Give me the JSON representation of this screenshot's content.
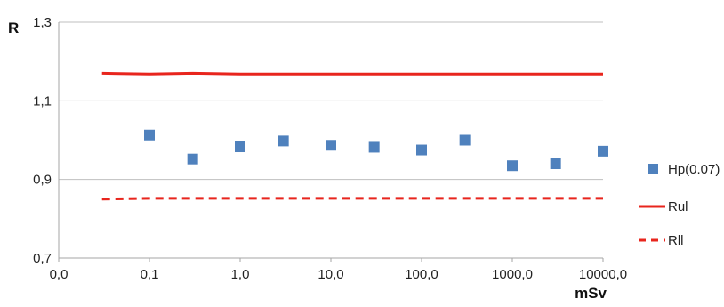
{
  "chart_data": {
    "type": "scatter",
    "title": "",
    "xlabel": "mSv",
    "ylabel": "R",
    "x_scale": "log",
    "x_tick_labels": [
      "0,0",
      "0,1",
      "1,0",
      "10,0",
      "100,0",
      "1000,0",
      "10000,0"
    ],
    "y_tick_labels": [
      "0,7",
      "0,9",
      "1,1",
      "1,3"
    ],
    "ylim": [
      0.7,
      1.3
    ],
    "grid": "horizontal",
    "legend_position": "right",
    "series": [
      {
        "name": "Hp(0.07)",
        "kind": "scatter",
        "marker": "square",
        "color": "#4f81bd",
        "x": [
          0.1,
          0.3,
          1,
          3,
          10,
          30,
          100,
          300,
          1000,
          3000,
          10000
        ],
        "y": [
          1.013,
          0.952,
          0.983,
          0.998,
          0.987,
          0.982,
          0.975,
          1.0,
          0.935,
          0.94,
          0.972
        ]
      },
      {
        "name": "Rul",
        "kind": "line",
        "style": "solid",
        "color": "#e8251d",
        "x": [
          0.03,
          0.1,
          0.3,
          1,
          10,
          100,
          1000,
          10000
        ],
        "y": [
          1.17,
          1.168,
          1.17,
          1.168,
          1.168,
          1.168,
          1.168,
          1.168
        ]
      },
      {
        "name": "Rll",
        "kind": "line",
        "style": "dashed",
        "color": "#e8251d",
        "x": [
          0.03,
          0.1,
          1,
          10,
          100,
          1000,
          10000
        ],
        "y": [
          0.85,
          0.852,
          0.852,
          0.852,
          0.852,
          0.852,
          0.852
        ]
      }
    ]
  }
}
